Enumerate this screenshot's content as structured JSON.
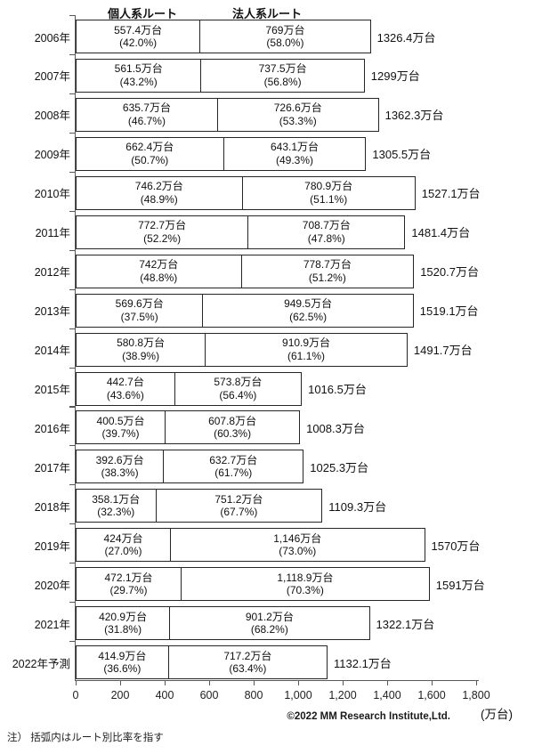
{
  "chart_data": {
    "type": "bar",
    "orientation": "horizontal-stacked",
    "series": [
      "個人系ルート",
      "法人系ルート"
    ],
    "x_axis": {
      "ticks": [
        "0",
        "200",
        "400",
        "600",
        "800",
        "1,000",
        "1,200",
        "1,400",
        "1,600",
        "1,800"
      ],
      "min": 0,
      "max": 1800,
      "unit": "(万台)"
    },
    "rows": [
      {
        "year": "2006年",
        "personal": {
          "value": 557.4,
          "label": "557.4万台",
          "pct": "(42.0%)"
        },
        "corporate": {
          "value": 769,
          "label": "769万台",
          "pct": "(58.0%)"
        },
        "total": {
          "value": 1326.4,
          "label": "1326.4万台"
        }
      },
      {
        "year": "2007年",
        "personal": {
          "value": 561.5,
          "label": "561.5万台",
          "pct": "(43.2%)"
        },
        "corporate": {
          "value": 737.5,
          "label": "737.5万台",
          "pct": "(56.8%)"
        },
        "total": {
          "value": 1299,
          "label": "1299万台"
        }
      },
      {
        "year": "2008年",
        "personal": {
          "value": 635.7,
          "label": "635.7万台",
          "pct": "(46.7%)"
        },
        "corporate": {
          "value": 726.6,
          "label": "726.6万台",
          "pct": "(53.3%)"
        },
        "total": {
          "value": 1362.3,
          "label": "1362.3万台"
        }
      },
      {
        "year": "2009年",
        "personal": {
          "value": 662.4,
          "label": "662.4万台",
          "pct": "(50.7%)"
        },
        "corporate": {
          "value": 643.1,
          "label": "643.1万台",
          "pct": "(49.3%)"
        },
        "total": {
          "value": 1305.5,
          "label": "1305.5万台"
        }
      },
      {
        "year": "2010年",
        "personal": {
          "value": 746.2,
          "label": "746.2万台",
          "pct": "(48.9%)"
        },
        "corporate": {
          "value": 780.9,
          "label": "780.9万台",
          "pct": "(51.1%)"
        },
        "total": {
          "value": 1527.1,
          "label": "1527.1万台"
        }
      },
      {
        "year": "2011年",
        "personal": {
          "value": 772.7,
          "label": "772.7万台",
          "pct": "(52.2%)"
        },
        "corporate": {
          "value": 708.7,
          "label": "708.7万台",
          "pct": "(47.8%)"
        },
        "total": {
          "value": 1481.4,
          "label": "1481.4万台"
        }
      },
      {
        "year": "2012年",
        "personal": {
          "value": 742,
          "label": "742万台",
          "pct": "(48.8%)"
        },
        "corporate": {
          "value": 778.7,
          "label": "778.7万台",
          "pct": "(51.2%)"
        },
        "total": {
          "value": 1520.7,
          "label": "1520.7万台"
        }
      },
      {
        "year": "2013年",
        "personal": {
          "value": 569.6,
          "label": "569.6万台",
          "pct": "(37.5%)"
        },
        "corporate": {
          "value": 949.5,
          "label": "949.5万台",
          "pct": "(62.5%)"
        },
        "total": {
          "value": 1519.1,
          "label": "1519.1万台"
        }
      },
      {
        "year": "2014年",
        "personal": {
          "value": 580.8,
          "label": "580.8万台",
          "pct": "(38.9%)"
        },
        "corporate": {
          "value": 910.9,
          "label": "910.9万台",
          "pct": "(61.1%)"
        },
        "total": {
          "value": 1491.7,
          "label": "1491.7万台"
        }
      },
      {
        "year": "2015年",
        "personal": {
          "value": 442.7,
          "label": "442.7台",
          "pct": "(43.6%)"
        },
        "corporate": {
          "value": 573.8,
          "label": "573.8万台",
          "pct": "(56.4%)"
        },
        "total": {
          "value": 1016.5,
          "label": "1016.5万台"
        }
      },
      {
        "year": "2016年",
        "personal": {
          "value": 400.5,
          "label": "400.5万台",
          "pct": "(39.7%)"
        },
        "corporate": {
          "value": 607.8,
          "label": "607.8万台",
          "pct": "(60.3%)"
        },
        "total": {
          "value": 1008.3,
          "label": "1008.3万台"
        }
      },
      {
        "year": "2017年",
        "personal": {
          "value": 392.6,
          "label": "392.6万台",
          "pct": "(38.3%)"
        },
        "corporate": {
          "value": 632.7,
          "label": "632.7万台",
          "pct": "(61.7%)"
        },
        "total": {
          "value": 1025.3,
          "label": "1025.3万台"
        }
      },
      {
        "year": "2018年",
        "personal": {
          "value": 358.1,
          "label": "358.1万台",
          "pct": "(32.3%)"
        },
        "corporate": {
          "value": 751.2,
          "label": "751.2万台",
          "pct": "(67.7%)"
        },
        "total": {
          "value": 1109.3,
          "label": "1109.3万台"
        }
      },
      {
        "year": "2019年",
        "personal": {
          "value": 424,
          "label": "424万台",
          "pct": "(27.0%)"
        },
        "corporate": {
          "value": 1146,
          "label": "1,146万台",
          "pct": "(73.0%)"
        },
        "total": {
          "value": 1570,
          "label": "1570万台"
        }
      },
      {
        "year": "2020年",
        "personal": {
          "value": 472.1,
          "label": "472.1万台",
          "pct": "(29.7%)"
        },
        "corporate": {
          "value": 1118.9,
          "label": "1,118.9万台",
          "pct": "(70.3%)"
        },
        "total": {
          "value": 1591,
          "label": "1591万台"
        }
      },
      {
        "year": "2021年",
        "personal": {
          "value": 420.9,
          "label": "420.9万台",
          "pct": "(31.8%)"
        },
        "corporate": {
          "value": 901.2,
          "label": "901.2万台",
          "pct": "(68.2%)"
        },
        "total": {
          "value": 1322.1,
          "label": "1322.1万台"
        }
      },
      {
        "year": "2022年予測",
        "personal": {
          "value": 414.9,
          "label": "414.9万台",
          "pct": "(36.6%)"
        },
        "corporate": {
          "value": 717.2,
          "label": "717.2万台",
          "pct": "(63.4%)"
        },
        "total": {
          "value": 1132.1,
          "label": "1132.1万台"
        }
      }
    ]
  },
  "footer": {
    "copyright": "©2022 MM Research Institute,Ltd.",
    "note": "注） 括弧内はルート別比率を指す"
  }
}
